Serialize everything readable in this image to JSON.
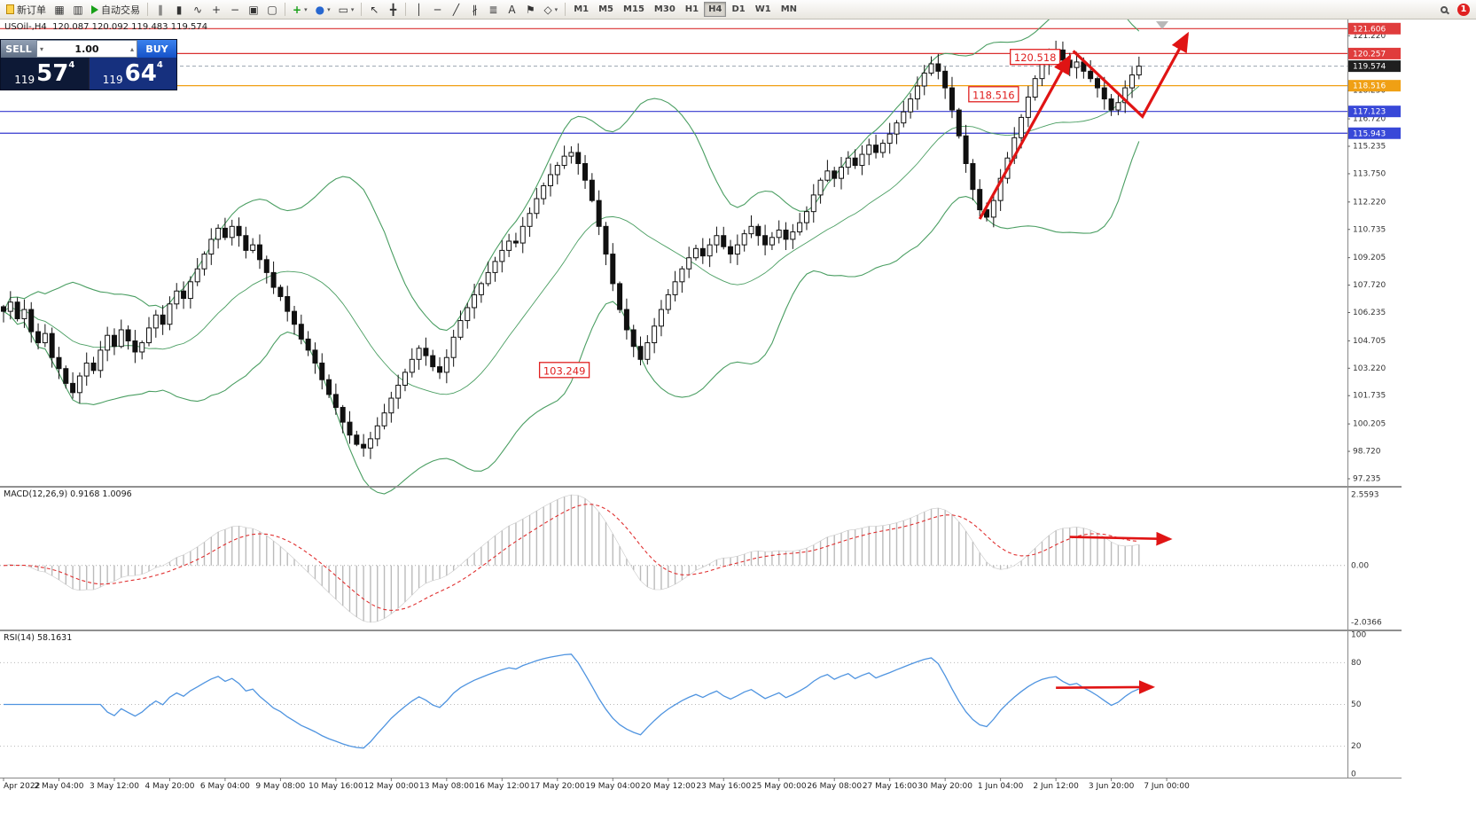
{
  "toolbar": {
    "new_order": "新订单",
    "autotrade": "自动交易",
    "icons_left": [
      {
        "name": "charts-grid-icon",
        "glyph": "▦"
      },
      {
        "name": "profiles-icon",
        "glyph": "▥"
      }
    ],
    "icons_chart": [
      {
        "name": "bar-chart-icon",
        "glyph": "∥"
      },
      {
        "name": "candlestick-chart-icon",
        "glyph": "▮"
      },
      {
        "name": "line-chart-icon",
        "glyph": "∿"
      },
      {
        "name": "zoom-in-icon",
        "glyph": "+"
      },
      {
        "name": "zoom-out-icon",
        "glyph": "−"
      },
      {
        "name": "tile-windows-icon",
        "glyph": "▣"
      },
      {
        "name": "new-chart-icon",
        "glyph": "▢"
      }
    ],
    "icons_tools": [
      {
        "name": "indicators-add-icon",
        "glyph": "+",
        "color": "#18a018",
        "dropdown": true
      },
      {
        "name": "navigator-icon",
        "glyph": "●",
        "color": "#2767d0",
        "dropdown": true
      },
      {
        "name": "snapshot-icon",
        "glyph": "▭",
        "dropdown": true
      }
    ],
    "icons_cursor": [
      {
        "name": "cursor-icon",
        "glyph": "↖"
      },
      {
        "name": "crosshair-icon",
        "glyph": "╋"
      }
    ],
    "icons_draw": [
      {
        "name": "vertical-line-icon",
        "glyph": "│"
      },
      {
        "name": "horizontal-line-icon",
        "glyph": "─"
      },
      {
        "name": "trendline-icon",
        "glyph": "╱"
      },
      {
        "name": "channel-icon",
        "glyph": "∦"
      },
      {
        "name": "fibonacci-icon",
        "glyph": "≣"
      },
      {
        "name": "text-icon",
        "glyph": "A"
      },
      {
        "name": "label-icon",
        "glyph": "⚑"
      },
      {
        "name": "shapes-icon",
        "glyph": "◇",
        "dropdown": true
      }
    ],
    "timeframes": [
      "M1",
      "M5",
      "M15",
      "M30",
      "H1",
      "H4",
      "D1",
      "W1",
      "MN"
    ],
    "active_timeframe": "H4",
    "notification_count": "1"
  },
  "chart": {
    "info_line": "USOil-,H4  120.087 120.092 119.483 119.574"
  },
  "trade_panel": {
    "sell_label": "SELL",
    "buy_label": "BUY",
    "volume": "1.00",
    "bid": {
      "prefix": "119",
      "big": "57",
      "sup": "4"
    },
    "ask": {
      "prefix": "119",
      "big": "64",
      "sup": "4"
    }
  },
  "price_axis": {
    "ticks": [
      "121.220",
      "118.250",
      "116.720",
      "115.235",
      "113.750",
      "112.220",
      "110.735",
      "109.205",
      "107.720",
      "106.235",
      "104.705",
      "103.220",
      "101.735",
      "100.205",
      "98.720",
      "97.235"
    ],
    "tags": [
      {
        "value": "121.606",
        "bg": "#e03c3c"
      },
      {
        "value": "120.257",
        "bg": "#e03c3c"
      },
      {
        "value": "119.574",
        "bg": "#1f1f1f"
      },
      {
        "value": "118.516",
        "bg": "#f0a014"
      },
      {
        "value": "117.123",
        "bg": "#3848d8"
      },
      {
        "value": "115.943",
        "bg": "#3848d8"
      }
    ]
  },
  "levels": [
    {
      "price": 121.606,
      "color": "#d93030"
    },
    {
      "price": 120.257,
      "color": "#d93030"
    },
    {
      "price": 118.516,
      "color": "#f0a014"
    },
    {
      "price": 117.123,
      "color": "#3438cf"
    },
    {
      "price": 115.943,
      "color": "#3438cf"
    }
  ],
  "annotations": [
    {
      "text": "120.518",
      "bar": 149,
      "price": 120.05
    },
    {
      "text": "118.516",
      "bar": 143,
      "price": 118.03
    },
    {
      "text": "103.249",
      "bar": 81,
      "price": 103.1
    }
  ],
  "trend_arrows": {
    "main": [
      {
        "points": [
          [
            141,
            111.3
          ],
          [
            154,
            120.1
          ]
        ]
      },
      {
        "points": [
          [
            154.5,
            120.4
          ],
          [
            164.5,
            116.85
          ],
          [
            171,
            121.3
          ]
        ]
      }
    ],
    "macd": [
      {
        "points": [
          [
            154,
            1.08
          ],
          [
            168.5,
            1.0
          ]
        ]
      }
    ],
    "rsi": [
      {
        "points": [
          [
            152,
            62
          ],
          [
            166,
            62.5
          ]
        ]
      }
    ]
  },
  "chart_data": {
    "type": "candlestick",
    "symbol": "USOil-",
    "period": "H4",
    "ohlc_current": {
      "open": 120.087,
      "high": 120.092,
      "low": 119.483,
      "close": 119.574
    },
    "price_range": {
      "min": 96.85,
      "max": 122.1
    },
    "closes": [
      106.3,
      106.8,
      105.9,
      106.4,
      105.2,
      104.6,
      105.1,
      103.8,
      103.2,
      102.4,
      101.9,
      102.8,
      103.5,
      103.1,
      104.2,
      105.0,
      104.4,
      105.3,
      104.7,
      104.1,
      104.6,
      105.4,
      106.1,
      105.6,
      106.7,
      107.4,
      107.0,
      107.9,
      108.6,
      109.4,
      110.2,
      110.8,
      110.3,
      110.9,
      110.4,
      109.6,
      109.9,
      109.1,
      108.4,
      107.6,
      107.1,
      106.3,
      105.6,
      104.8,
      104.2,
      103.5,
      102.6,
      101.8,
      101.1,
      100.3,
      99.6,
      99.1,
      98.9,
      99.4,
      100.1,
      100.8,
      101.6,
      102.3,
      103.0,
      103.7,
      104.3,
      103.9,
      103.3,
      103.0,
      103.8,
      104.9,
      105.8,
      106.5,
      107.2,
      107.8,
      108.4,
      109.0,
      109.6,
      110.1,
      110.0,
      110.9,
      111.6,
      112.4,
      113.1,
      113.7,
      114.2,
      114.7,
      114.9,
      114.3,
      113.4,
      112.3,
      110.9,
      109.4,
      107.8,
      106.4,
      105.3,
      104.4,
      103.7,
      104.6,
      105.5,
      106.4,
      107.2,
      107.9,
      108.6,
      109.2,
      109.7,
      109.3,
      109.9,
      110.4,
      109.8,
      109.4,
      109.9,
      110.5,
      110.9,
      110.4,
      109.9,
      110.3,
      110.7,
      110.2,
      110.6,
      111.1,
      111.7,
      112.6,
      113.4,
      113.9,
      113.5,
      114.1,
      114.6,
      114.2,
      114.8,
      115.3,
      114.9,
      115.4,
      115.9,
      116.5,
      117.1,
      117.8,
      118.5,
      119.2,
      119.7,
      119.3,
      118.4,
      117.2,
      115.8,
      114.3,
      112.9,
      111.8,
      111.4,
      112.3,
      113.5,
      114.6,
      115.7,
      116.8,
      117.9,
      118.9,
      119.7,
      120.2,
      120.45,
      119.9,
      119.5,
      119.8,
      119.3,
      118.9,
      118.4,
      117.8,
      117.2,
      117.6,
      118.4,
      119.1,
      119.574
    ],
    "indicators": {
      "bollinger": {
        "period": 20,
        "deviation": 2,
        "color": "#4a9e62"
      },
      "macd": {
        "label": "MACD(12,26,9) 0.9168 1.0096",
        "fast": 12,
        "slow": 26,
        "signal_period": 9,
        "value": 0.9168,
        "signal_value": 1.0096,
        "scale_labels": [
          "2.5593",
          "0.00",
          "-2.0366"
        ]
      },
      "rsi": {
        "label": "RSI(14) 58.1631",
        "period": 14,
        "value": 58.1631,
        "scale_labels": [
          "100",
          "80",
          "50",
          "20",
          "0"
        ],
        "levels": [
          80,
          50,
          20
        ]
      }
    }
  },
  "time_axis": {
    "labels": [
      "Apr 2022",
      "2 May 04:00",
      "3 May 12:00",
      "4 May 20:00",
      "6 May 04:00",
      "9 May 08:00",
      "10 May 16:00",
      "12 May 00:00",
      "13 May 08:00",
      "16 May 12:00",
      "17 May 20:00",
      "19 May 04:00",
      "20 May 12:00",
      "23 May 16:00",
      "25 May 00:00",
      "26 May 08:00",
      "27 May 16:00",
      "30 May 20:00",
      "1 Jun 04:00",
      "2 Jun 12:00",
      "3 Jun 20:00",
      "7 Jun 00:00"
    ]
  }
}
